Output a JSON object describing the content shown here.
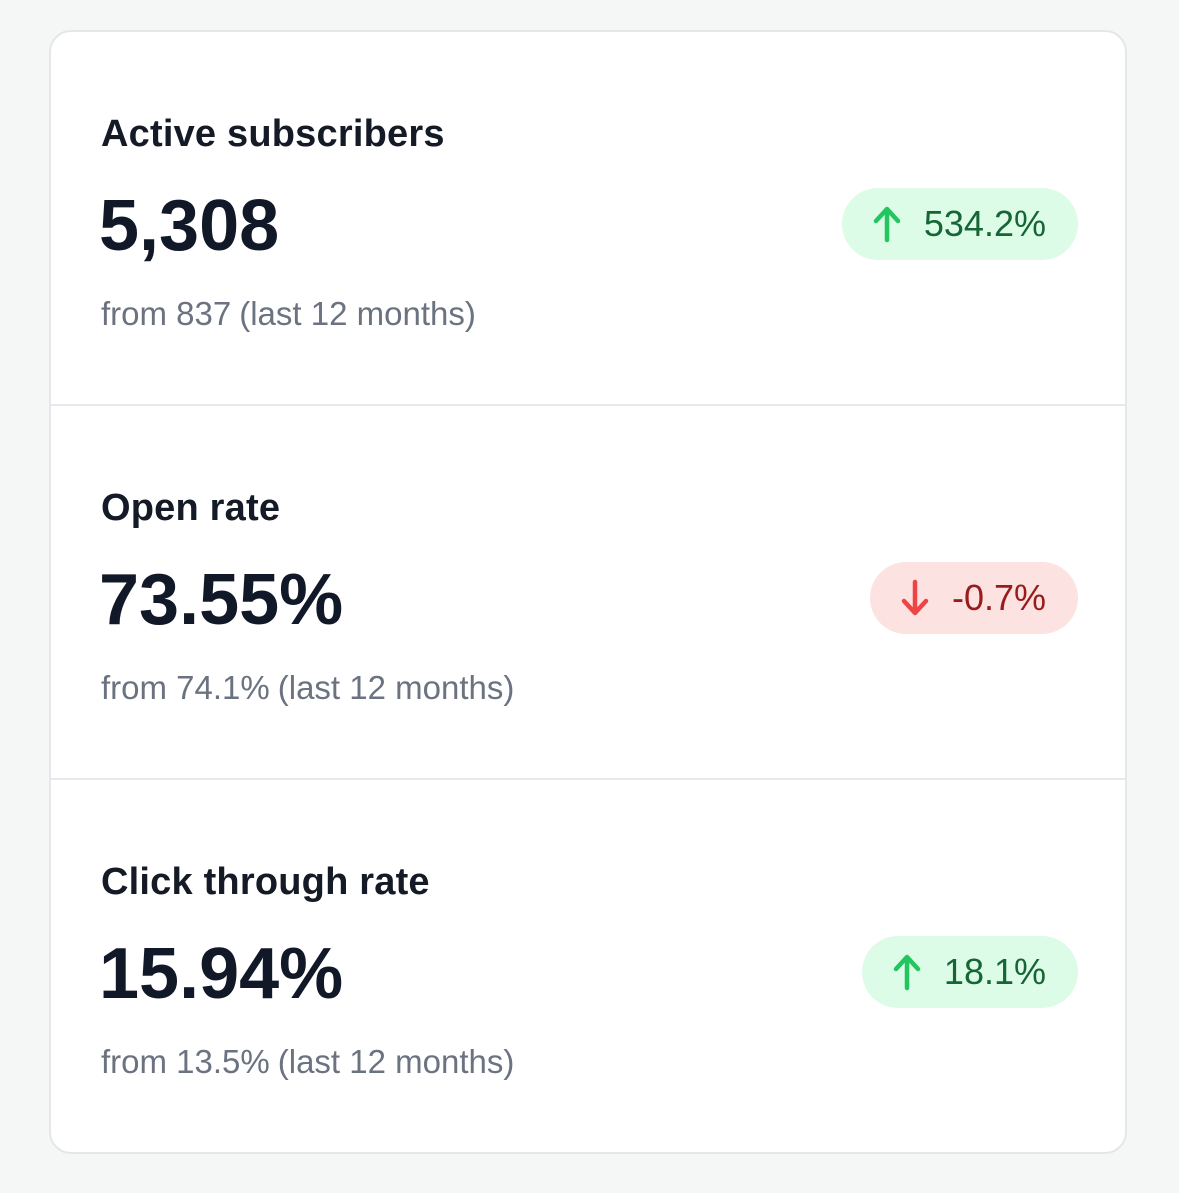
{
  "stats": [
    {
      "label": "Active subscribers",
      "value": "5,308",
      "from": "from 837",
      "period": "(last 12 months)",
      "change": "534.2%",
      "direction": "up",
      "icon": "arrow-up-icon"
    },
    {
      "label": "Open rate",
      "value": "73.55%",
      "from": "from 74.1%",
      "period": "(last 12 months)",
      "change": "-0.7%",
      "direction": "down",
      "icon": "arrow-down-icon"
    },
    {
      "label": "Click through rate",
      "value": "15.94%",
      "from": "from 13.5%",
      "period": "(last 12 months)",
      "change": "18.1%",
      "direction": "up",
      "icon": "arrow-up-icon"
    }
  ],
  "colors": {
    "up_icon": "#22c55e",
    "down_icon": "#ef4444",
    "up_badge_bg": "#dcfce7",
    "down_badge_bg": "#fde2e2"
  }
}
